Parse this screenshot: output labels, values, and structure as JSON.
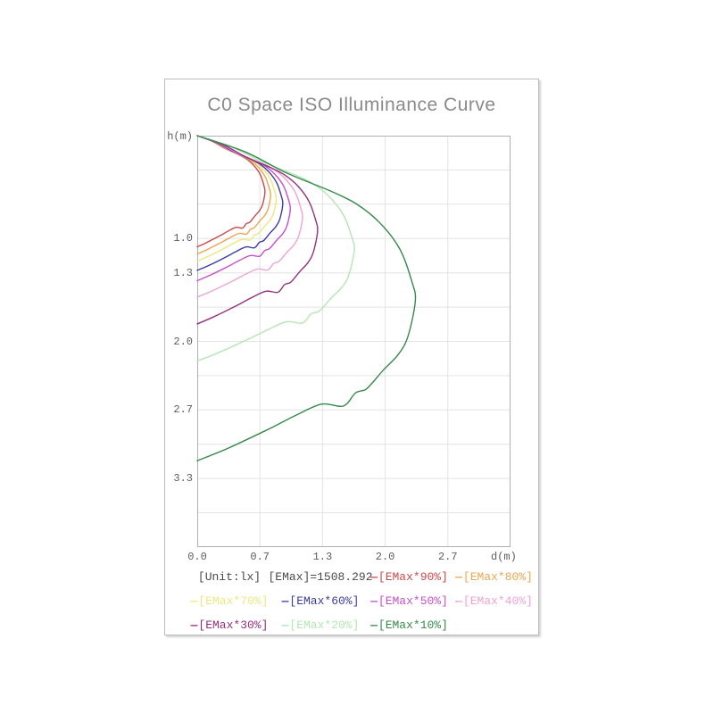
{
  "chart_data": {
    "type": "line",
    "title": "C0 Space ISO Illuminance Curve",
    "xlabel": "d(m)",
    "ylabel": "h(m)",
    "unit_label": "[Unit:lx]",
    "emax_label": "[EMax]=1508.292",
    "emax_value": 1508.292,
    "unit": "lx",
    "grid": true,
    "legend_position": "bottom",
    "x_range": [
      0,
      3.3333
    ],
    "y_range": [
      0,
      4.0
    ],
    "x_grid_step": 0.6667,
    "y_grid_step": 0.3333,
    "x_ticks": [
      {
        "label": "0.0",
        "d": 0
      },
      {
        "label": "0.7",
        "d": 0.6667
      },
      {
        "label": "1.3",
        "d": 1.3333
      },
      {
        "label": "2.0",
        "d": 2.0
      },
      {
        "label": "2.7",
        "d": 2.6667
      }
    ],
    "y_ticks": [
      {
        "label": "1.0",
        "h": 1.0
      },
      {
        "label": "1.3",
        "h": 1.3333
      },
      {
        "label": "2.0",
        "h": 2.0
      },
      {
        "label": "2.7",
        "h": 2.6667
      },
      {
        "label": "3.3",
        "h": 3.3333
      }
    ],
    "series": [
      {
        "name": "[EMax*90%]",
        "percent": 90,
        "color": "#cb4949",
        "points": [
          [
            0,
            0
          ],
          [
            0.158,
            0.054
          ],
          [
            0.295,
            0.124
          ],
          [
            0.439,
            0.184
          ],
          [
            0.526,
            0.227
          ],
          [
            0.605,
            0.292
          ],
          [
            0.67,
            0.378
          ],
          [
            0.709,
            0.486
          ],
          [
            0.72,
            0.551
          ],
          [
            0.695,
            0.67
          ],
          [
            0.662,
            0.729
          ],
          [
            0.616,
            0.778
          ],
          [
            0.576,
            0.824
          ],
          [
            0.554,
            0.845
          ],
          [
            0.522,
            0.855
          ],
          [
            0.482,
            0.898
          ],
          [
            0.41,
            0.892
          ],
          [
            0.324,
            0.93
          ],
          [
            0.238,
            0.974
          ],
          [
            0.101,
            1.039
          ],
          [
            0,
            1.08
          ]
        ]
      },
      {
        "name": "[EMax*80%]",
        "percent": 80,
        "color": "#e9a750",
        "points": [
          [
            0,
            0
          ],
          [
            0.172,
            0.058
          ],
          [
            0.32,
            0.132
          ],
          [
            0.476,
            0.196
          ],
          [
            0.569,
            0.242
          ],
          [
            0.655,
            0.311
          ],
          [
            0.725,
            0.403
          ],
          [
            0.768,
            0.518
          ],
          [
            0.78,
            0.587
          ],
          [
            0.753,
            0.713
          ],
          [
            0.718,
            0.776
          ],
          [
            0.667,
            0.828
          ],
          [
            0.624,
            0.877
          ],
          [
            0.601,
            0.899
          ],
          [
            0.566,
            0.911
          ],
          [
            0.523,
            0.957
          ],
          [
            0.445,
            0.95
          ],
          [
            0.351,
            0.99
          ],
          [
            0.257,
            1.037
          ],
          [
            0.109,
            1.106
          ],
          [
            0,
            1.15
          ]
        ]
      },
      {
        "name": "[EMax*70%]",
        "percent": 70,
        "color": "#ece87f",
        "points": [
          [
            0,
            0
          ],
          [
            0.185,
            0.061
          ],
          [
            0.344,
            0.14
          ],
          [
            0.512,
            0.207
          ],
          [
            0.613,
            0.256
          ],
          [
            0.706,
            0.329
          ],
          [
            0.781,
            0.427
          ],
          [
            0.827,
            0.549
          ],
          [
            0.84,
            0.622
          ],
          [
            0.811,
            0.756
          ],
          [
            0.773,
            0.824
          ],
          [
            0.718,
            0.878
          ],
          [
            0.672,
            0.931
          ],
          [
            0.647,
            0.954
          ],
          [
            0.609,
            0.966
          ],
          [
            0.563,
            1.015
          ],
          [
            0.479,
            1.008
          ],
          [
            0.378,
            1.05
          ],
          [
            0.277,
            1.1
          ],
          [
            0.118,
            1.174
          ],
          [
            0,
            1.22
          ]
        ]
      },
      {
        "name": "[EMax*60%]",
        "percent": 60,
        "color": "#3b3ba3",
        "points": [
          [
            0,
            0
          ],
          [
            0.2,
            0.066
          ],
          [
            0.373,
            0.151
          ],
          [
            0.555,
            0.223
          ],
          [
            0.664,
            0.275
          ],
          [
            0.764,
            0.354
          ],
          [
            0.846,
            0.459
          ],
          [
            0.896,
            0.59
          ],
          [
            0.91,
            0.668
          ],
          [
            0.878,
            0.812
          ],
          [
            0.837,
            0.884
          ],
          [
            0.778,
            0.943
          ],
          [
            0.728,
            0.999
          ],
          [
            0.701,
            1.024
          ],
          [
            0.66,
            1.038
          ],
          [
            0.61,
            1.09
          ],
          [
            0.519,
            1.082
          ],
          [
            0.41,
            1.128
          ],
          [
            0.3,
            1.182
          ],
          [
            0.127,
            1.26
          ],
          [
            0,
            1.31
          ]
        ]
      },
      {
        "name": "[EMax*50%]",
        "percent": 50,
        "color": "#c750c7",
        "points": [
          [
            0,
            0
          ],
          [
            0.218,
            0.071
          ],
          [
            0.406,
            0.162
          ],
          [
            0.604,
            0.24
          ],
          [
            0.723,
            0.296
          ],
          [
            0.832,
            0.381
          ],
          [
            0.921,
            0.494
          ],
          [
            0.975,
            0.635
          ],
          [
            0.99,
            0.719
          ],
          [
            0.955,
            0.874
          ],
          [
            0.911,
            0.952
          ],
          [
            0.847,
            1.015
          ],
          [
            0.792,
            1.076
          ],
          [
            0.762,
            1.103
          ],
          [
            0.718,
            1.117
          ],
          [
            0.663,
            1.173
          ],
          [
            0.564,
            1.165
          ],
          [
            0.446,
            1.214
          ],
          [
            0.327,
            1.272
          ],
          [
            0.139,
            1.356
          ],
          [
            0,
            1.41
          ]
        ]
      },
      {
        "name": "[EMax*40%]",
        "percent": 40,
        "color": "#efa3d4",
        "points": [
          [
            0,
            0
          ],
          [
            0.246,
            0.079
          ],
          [
            0.459,
            0.181
          ],
          [
            0.683,
            0.267
          ],
          [
            0.818,
            0.33
          ],
          [
            0.941,
            0.424
          ],
          [
            1.042,
            0.55
          ],
          [
            1.103,
            0.707
          ],
          [
            1.12,
            0.801
          ],
          [
            1.081,
            0.973
          ],
          [
            1.03,
            1.06
          ],
          [
            0.958,
            1.13
          ],
          [
            0.896,
            1.198
          ],
          [
            0.862,
            1.228
          ],
          [
            0.812,
            1.243
          ],
          [
            0.75,
            1.306
          ],
          [
            0.638,
            1.297
          ],
          [
            0.504,
            1.352
          ],
          [
            0.37,
            1.416
          ],
          [
            0.157,
            1.51
          ],
          [
            0,
            1.57
          ]
        ]
      },
      {
        "name": "[EMax*30%]",
        "percent": 30,
        "color": "#93307f",
        "points": [
          [
            0,
            0
          ],
          [
            0.282,
            0.092
          ],
          [
            0.525,
            0.21
          ],
          [
            0.781,
            0.311
          ],
          [
            0.934,
            0.384
          ],
          [
            1.075,
            0.494
          ],
          [
            1.19,
            0.641
          ],
          [
            1.261,
            0.824
          ],
          [
            1.28,
            0.933
          ],
          [
            1.235,
            1.135
          ],
          [
            1.178,
            1.235
          ],
          [
            1.094,
            1.318
          ],
          [
            1.024,
            1.396
          ],
          [
            0.986,
            1.431
          ],
          [
            0.928,
            1.449
          ],
          [
            0.858,
            1.523
          ],
          [
            0.73,
            1.512
          ],
          [
            0.576,
            1.576
          ],
          [
            0.422,
            1.651
          ],
          [
            0.179,
            1.76
          ],
          [
            0,
            1.83
          ]
        ]
      },
      {
        "name": "[EMax*20%]",
        "percent": 20,
        "color": "#b5e6b5",
        "points": [
          [
            0,
            0
          ],
          [
            0.367,
            0.11
          ],
          [
            0.685,
            0.252
          ],
          [
            1.019,
            0.372
          ],
          [
            1.219,
            0.46
          ],
          [
            1.403,
            0.591
          ],
          [
            1.553,
            0.767
          ],
          [
            1.645,
            0.986
          ],
          [
            1.67,
            1.117
          ],
          [
            1.612,
            1.358
          ],
          [
            1.536,
            1.478
          ],
          [
            1.428,
            1.577
          ],
          [
            1.336,
            1.671
          ],
          [
            1.286,
            1.713
          ],
          [
            1.211,
            1.734
          ],
          [
            1.119,
            1.822
          ],
          [
            0.952,
            1.809
          ],
          [
            0.752,
            1.886
          ],
          [
            0.551,
            1.975
          ],
          [
            0.234,
            2.107
          ],
          [
            0,
            2.19
          ]
        ]
      },
      {
        "name": "[EMax*10%]",
        "percent": 10,
        "color": "#37894d",
        "points": [
          [
            0,
            0
          ],
          [
            0.51,
            0.158
          ],
          [
            0.951,
            0.363
          ],
          [
            1.415,
            0.537
          ],
          [
            1.694,
            0.664
          ],
          [
            1.949,
            0.853
          ],
          [
            2.158,
            1.106
          ],
          [
            2.285,
            1.422
          ],
          [
            2.32,
            1.612
          ],
          [
            2.239,
            1.959
          ],
          [
            2.134,
            2.133
          ],
          [
            1.984,
            2.275
          ],
          [
            1.856,
            2.411
          ],
          [
            1.786,
            2.471
          ],
          [
            1.682,
            2.503
          ],
          [
            1.554,
            2.629
          ],
          [
            1.322,
            2.61
          ],
          [
            1.044,
            2.721
          ],
          [
            0.766,
            2.85
          ],
          [
            0.325,
            3.04
          ],
          [
            0,
            3.16
          ]
        ]
      }
    ],
    "legend_items": [
      {
        "text": "[Unit:lx]",
        "color": "#4a4a4a",
        "dash": false
      },
      {
        "text": "[EMax]=1508.292",
        "color": "#4a4a4a",
        "dash": false
      },
      {
        "text": "[EMax*90%]",
        "color": "#cb4949",
        "dash": true
      },
      {
        "text": "[EMax*80%]",
        "color": "#e9a750",
        "dash": true
      },
      {
        "text": "[EMax*70%]",
        "color": "#ece87f",
        "dash": true
      },
      {
        "text": "[EMax*60%]",
        "color": "#3b3ba3",
        "dash": true
      },
      {
        "text": "[EMax*50%]",
        "color": "#c750c7",
        "dash": true
      },
      {
        "text": "[EMax*40%]",
        "color": "#efa3d4",
        "dash": true
      },
      {
        "text": "[EMax*30%]",
        "color": "#93307f",
        "dash": true
      },
      {
        "text": "[EMax*20%]",
        "color": "#b5e6b5",
        "dash": true
      },
      {
        "text": "[EMax*10%]",
        "color": "#37894d",
        "dash": true
      }
    ],
    "style": {
      "grid_color": "#e3e3e3",
      "frame_color": "#b0b0b0",
      "title_color": "#8a8a8a",
      "tick_color": "#5c5c5c"
    }
  }
}
